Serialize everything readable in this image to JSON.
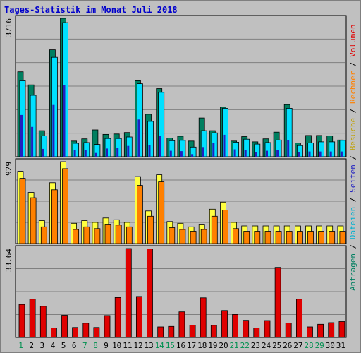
{
  "window": {
    "title": "Tages-Statistik im Monat Juli 2018"
  },
  "colors": {
    "anfragen": "#007f60",
    "dateien": "#00e0ff",
    "seiten": "#2020c0",
    "besuche": "#ffff40",
    "rechner": "#ff8000",
    "volumen": "#e00000",
    "weekday_label": "#000000",
    "weekend_label": "#009050"
  },
  "legend_right": [
    {
      "text": "Anfragen",
      "color": "#007f60"
    },
    {
      "text": " / ",
      "color": "#000000"
    },
    {
      "text": "Dateien",
      "color": "#00b0d0"
    },
    {
      "text": " / ",
      "color": "#000000"
    },
    {
      "text": "Seiten",
      "color": "#2020c0"
    },
    {
      "text": " / ",
      "color": "#000000"
    },
    {
      "text": "Besuche",
      "color": "#c0a000"
    },
    {
      "text": " / ",
      "color": "#000000"
    },
    {
      "text": "Rechner",
      "color": "#ff8000"
    },
    {
      "text": " / ",
      "color": "#000000"
    },
    {
      "text": "Volumen",
      "color": "#e00000"
    }
  ],
  "chart_data": [
    {
      "type": "bar",
      "title": "Tages-Statistik im Monat Juli 2018",
      "max_label": "3716",
      "ylim": [
        0,
        3716
      ],
      "categories": [
        "1",
        "2",
        "3",
        "4",
        "5",
        "6",
        "7",
        "8",
        "9",
        "10",
        "11",
        "12",
        "13",
        "14",
        "15",
        "16",
        "17",
        "18",
        "19",
        "20",
        "21",
        "22",
        "23",
        "24",
        "25",
        "26",
        "27",
        "28",
        "29",
        "30",
        "31"
      ],
      "weekend_days": [
        "1",
        "7",
        "8",
        "14",
        "15",
        "21",
        "22",
        "28",
        "29"
      ],
      "series": [
        {
          "name": "Anfragen",
          "values": [
            2280,
            1930,
            700,
            2870,
            3716,
            420,
            480,
            720,
            600,
            610,
            650,
            2040,
            1140,
            1830,
            500,
            550,
            420,
            1040,
            700,
            1330,
            420,
            540,
            400,
            480,
            660,
            1400,
            370,
            570,
            570,
            560,
            450
          ]
        },
        {
          "name": "Dateien",
          "values": [
            2040,
            1650,
            560,
            2670,
            3600,
            360,
            380,
            330,
            490,
            490,
            530,
            1960,
            950,
            1730,
            430,
            440,
            260,
            700,
            640,
            1300,
            390,
            470,
            340,
            380,
            450,
            1300,
            300,
            370,
            400,
            400,
            440
          ]
        },
        {
          "name": "Seiten",
          "values": [
            1120,
            800,
            210,
            1390,
            1920,
            180,
            170,
            100,
            220,
            240,
            290,
            1000,
            310,
            550,
            160,
            150,
            70,
            260,
            360,
            590,
            200,
            180,
            130,
            160,
            190,
            450,
            120,
            140,
            140,
            140,
            140
          ]
        }
      ]
    },
    {
      "type": "bar",
      "max_label": "929",
      "ylim": [
        0,
        929
      ],
      "categories": [
        "1",
        "2",
        "3",
        "4",
        "5",
        "6",
        "7",
        "8",
        "9",
        "10",
        "11",
        "12",
        "13",
        "14",
        "15",
        "16",
        "17",
        "18",
        "19",
        "20",
        "21",
        "22",
        "23",
        "24",
        "25",
        "26",
        "27",
        "28",
        "29",
        "30",
        "31"
      ],
      "series": [
        {
          "name": "Besuche",
          "values": [
            820,
            580,
            260,
            690,
            929,
            230,
            260,
            240,
            290,
            270,
            240,
            760,
            370,
            780,
            250,
            230,
            190,
            220,
            390,
            470,
            240,
            200,
            200,
            200,
            200,
            200,
            200,
            200,
            200,
            200,
            200
          ]
        },
        {
          "name": "Rechner",
          "values": [
            740,
            520,
            190,
            610,
            850,
            160,
            190,
            170,
            220,
            210,
            190,
            660,
            310,
            700,
            180,
            160,
            140,
            160,
            310,
            380,
            170,
            140,
            140,
            140,
            140,
            140,
            140,
            140,
            140,
            140,
            140
          ]
        }
      ]
    },
    {
      "type": "bar",
      "max_label": "33.64",
      "ylim": [
        0,
        33.64
      ],
      "categories": [
        "1",
        "2",
        "3",
        "4",
        "5",
        "6",
        "7",
        "8",
        "9",
        "10",
        "11",
        "12",
        "13",
        "14",
        "15",
        "16",
        "17",
        "18",
        "19",
        "20",
        "21",
        "22",
        "23",
        "24",
        "25",
        "26",
        "27",
        "28",
        "29",
        "30",
        "31"
      ],
      "series": [
        {
          "name": "Volumen",
          "values": [
            12.5,
            14.5,
            11.8,
            3.6,
            8.4,
            3.8,
            5.4,
            3.8,
            8.3,
            15.1,
            33.64,
            15.5,
            33.5,
            4.0,
            4.2,
            9.7,
            4.7,
            15.0,
            4.6,
            10.2,
            8.7,
            6.5,
            3.6,
            6.4,
            26.5,
            5.5,
            14.5,
            4.0,
            5.0,
            5.6,
            6.0
          ]
        }
      ]
    }
  ]
}
